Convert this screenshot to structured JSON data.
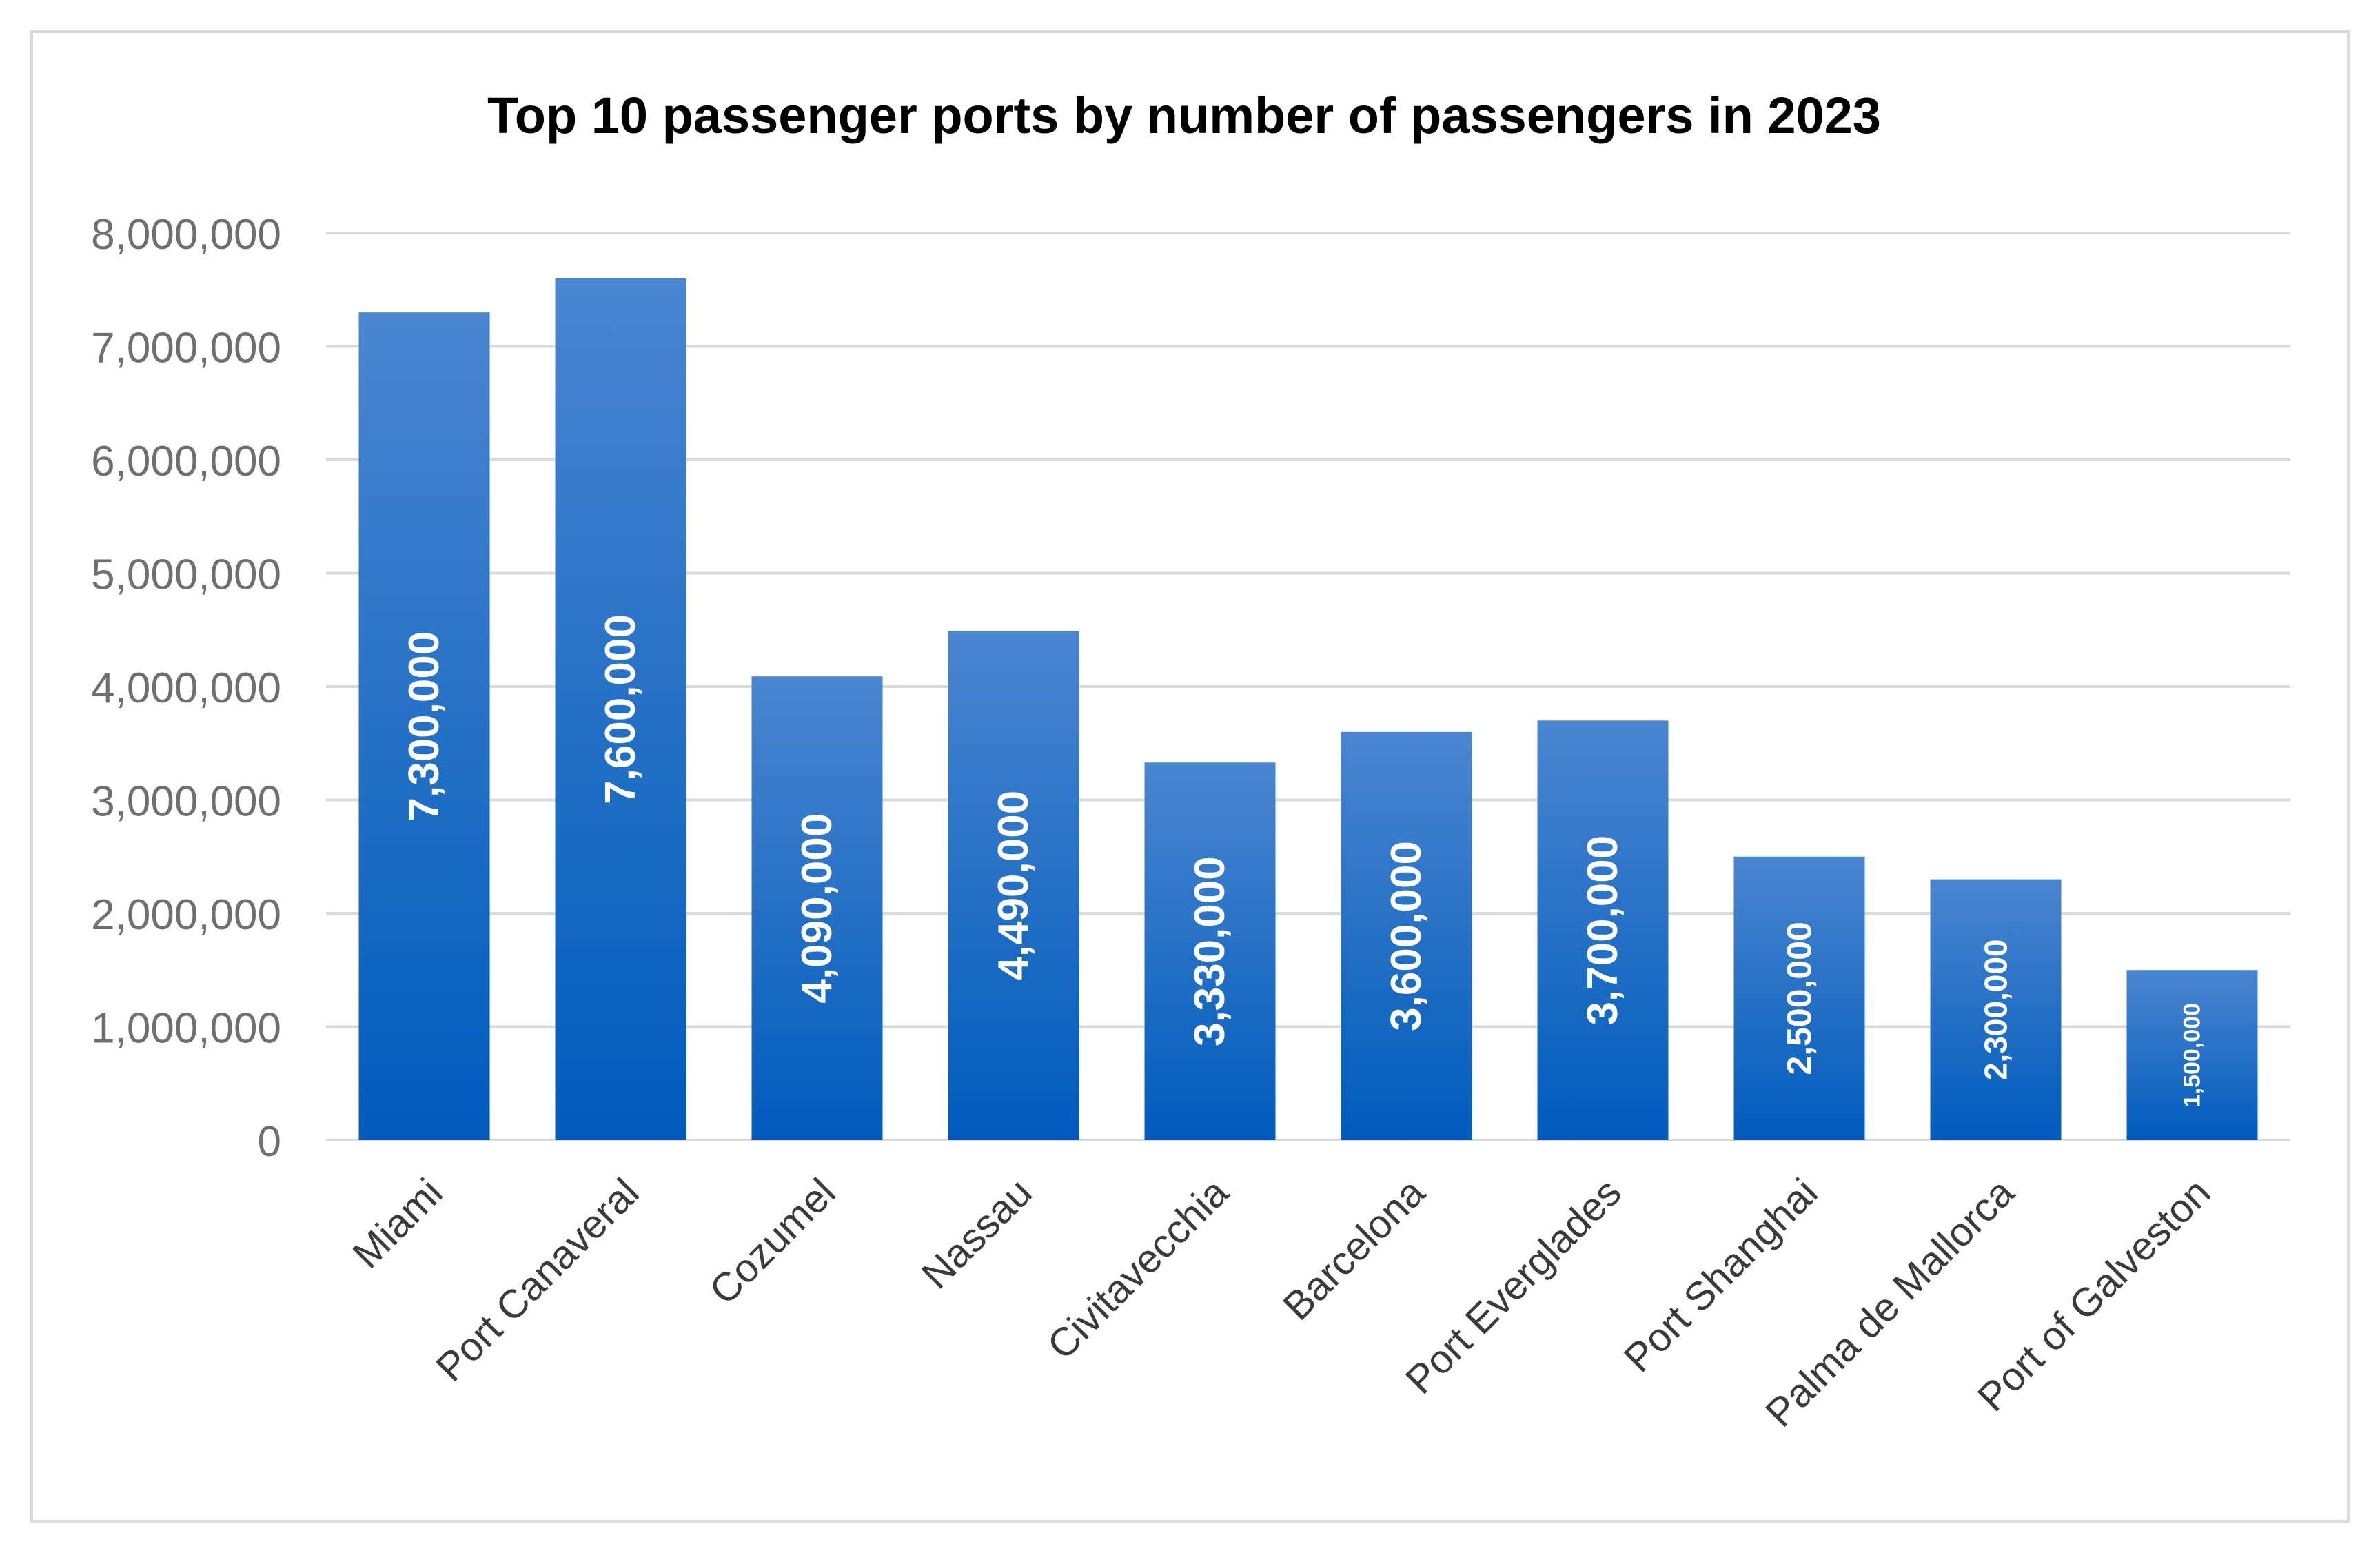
{
  "chart_data": {
    "type": "bar",
    "title": "Top 10 passenger ports by number of passengers in 2023",
    "xlabel": "",
    "ylabel": "",
    "ylim": [
      0,
      8000000
    ],
    "yticks": [
      0,
      1000000,
      2000000,
      3000000,
      4000000,
      5000000,
      6000000,
      7000000,
      8000000
    ],
    "ytick_labels": [
      "0",
      "1,000,000",
      "2,000,000",
      "3,000,000",
      "4,000,000",
      "5,000,000",
      "6,000,000",
      "7,000,000",
      "8,000,000"
    ],
    "grid": true,
    "legend": "none",
    "categories": [
      "Miami",
      "Port Canaveral",
      "Cozumel",
      "Nassau",
      "Civitavecchia",
      "Barcelona",
      "Port Everglades",
      "Port Shanghai",
      "Palma de Mallorca",
      "Port of Galveston"
    ],
    "values": [
      7300000,
      7600000,
      4090000,
      4490000,
      3330000,
      3600000,
      3700000,
      2500000,
      2300000,
      1500000
    ],
    "data_labels": [
      "7,300,000",
      "7,600,000",
      "4,090,000",
      "4,490,000",
      "3,330,000",
      "3,600,000",
      "3,700,000",
      "2,500,000",
      "2,300,000",
      "1,500,000"
    ],
    "colors": {
      "bar_top": "#4a86d0",
      "bar_bottom": "#005bbd",
      "grid": "#d9d9d9",
      "tick_text": "#6f6f6f",
      "category_text": "#3a3a3a"
    }
  }
}
